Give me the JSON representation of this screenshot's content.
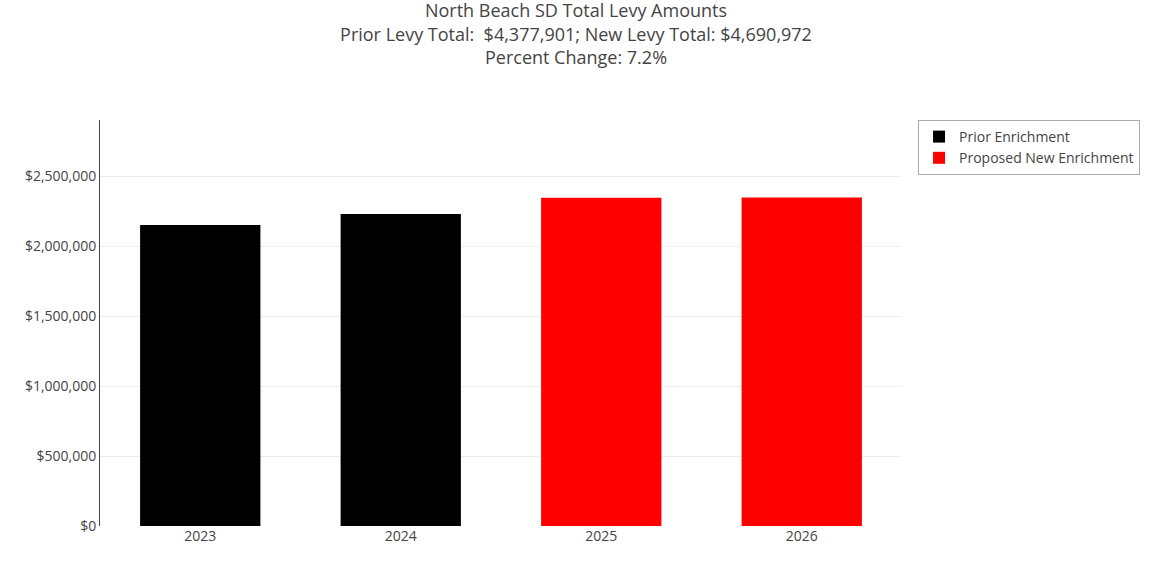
{
  "chart_data": {
    "type": "bar",
    "title": "North Beach SD Total Levy Amounts\nPrior Levy Total:  $4,377,901; New Levy Total: $4,690,972\nPercent Change: 7.2%",
    "categories": [
      "2023",
      "2024",
      "2025",
      "2026"
    ],
    "series": [
      {
        "name": "Prior Enrichment",
        "color": "#000000",
        "values": [
          2150000,
          2227901,
          null,
          null
        ]
      },
      {
        "name": "Proposed New Enrichment",
        "color": "#ff0000",
        "values": [
          null,
          null,
          2345000,
          2345972
        ]
      }
    ],
    "ylim": [
      0,
      2900000
    ],
    "yticks": [
      {
        "value": 0,
        "label": "$0"
      },
      {
        "value": 500000,
        "label": "$500,000"
      },
      {
        "value": 1000000,
        "label": "$1,000,000"
      },
      {
        "value": 1500000,
        "label": "$1,500,000"
      },
      {
        "value": 2000000,
        "label": "$2,000,000"
      },
      {
        "value": 2500000,
        "label": "$2,500,000"
      }
    ],
    "grid": true,
    "legend": "upper right"
  }
}
